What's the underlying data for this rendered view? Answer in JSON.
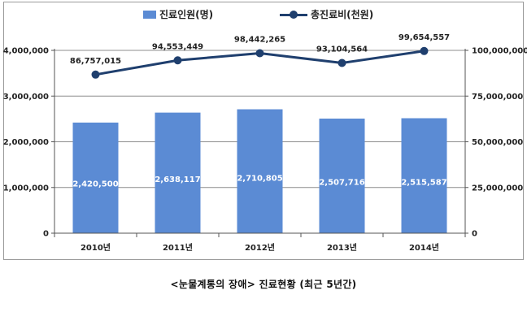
{
  "chart_data": {
    "type": "bar",
    "categories": [
      "2010년",
      "2011년",
      "2012년",
      "2013년",
      "2014년"
    ],
    "series": [
      {
        "name": "진료인원(명)",
        "type": "bar",
        "axis": "left",
        "color": "#5b8bd4",
        "values": [
          2420500,
          2638117,
          2710805,
          2507716,
          2515587
        ],
        "labels": [
          "2,420,500",
          "2,638,117",
          "2,710,805",
          "2,507,716",
          "2,515,587"
        ]
      },
      {
        "name": "총진료비(천원)",
        "type": "line",
        "axis": "right",
        "color": "#1f3f6e",
        "values": [
          86757015,
          94553449,
          98442265,
          93104564,
          99654557
        ],
        "labels": [
          "86,757,015",
          "94,553,449",
          "98,442,265",
          "93,104,564",
          "99,654,557"
        ]
      }
    ],
    "y_left": {
      "ylim": [
        0,
        4000000
      ],
      "ticks": [
        0,
        1000000,
        2000000,
        3000000,
        4000000
      ],
      "tick_labels": [
        "0",
        "1,000,000",
        "2,000,000",
        "3,000,000",
        "4,000,000"
      ]
    },
    "y_right": {
      "ylim": [
        0,
        100000000
      ],
      "ticks": [
        0,
        25000000,
        50000000,
        75000000,
        100000000
      ],
      "tick_labels": [
        "0",
        "25,000,000",
        "50,000,000",
        "75,000,000",
        "100,000,000"
      ]
    },
    "grid": true,
    "legend_placement": "top-center"
  },
  "caption": "<눈물계통의 장애> 진료현황 (최근 5년간)"
}
